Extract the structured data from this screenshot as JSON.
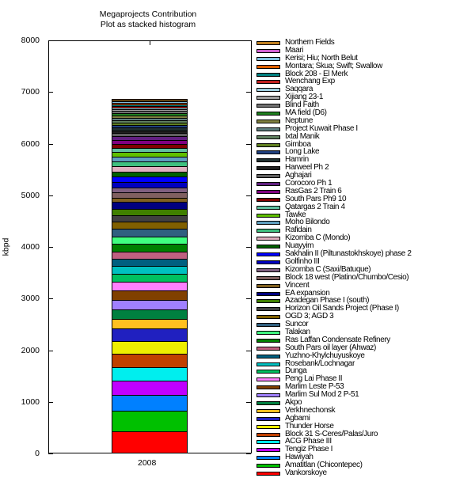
{
  "chart_data": {
    "type": "bar",
    "stacked": true,
    "title": "Megaprojects Contribution",
    "subtitle": "Plot as stacked histogram",
    "xlabel": "",
    "ylabel": "kbpd",
    "categories": [
      "2008"
    ],
    "ylim": [
      0,
      8000
    ],
    "yticks": [
      0,
      1000,
      2000,
      3000,
      4000,
      5000,
      6000,
      7000,
      8000
    ],
    "grid": false,
    "legend_position": "right",
    "series": [
      {
        "name": "Vankorskoye",
        "color": "#ff0000",
        "values": [
          410
        ]
      },
      {
        "name": "Amatitlan (Chicontepec)",
        "color": "#00c000",
        "values": [
          395
        ]
      },
      {
        "name": "Hawiyah",
        "color": "#0080ff",
        "values": [
          320
        ]
      },
      {
        "name": "Tengiz Phase I",
        "color": "#c000ff",
        "values": [
          275
        ]
      },
      {
        "name": "ACG Phase III",
        "color": "#00eeee",
        "values": [
          260
        ]
      },
      {
        "name": "Block 31 S-Ceres/Palas/Juro",
        "color": "#c04000",
        "values": [
          260
        ]
      },
      {
        "name": "Thunder Horse",
        "color": "#eeee00",
        "values": [
          245
        ]
      },
      {
        "name": "Agbami",
        "color": "#2020c0",
        "values": [
          235
        ]
      },
      {
        "name": "Verkhnechonsk",
        "color": "#ffc020",
        "values": [
          195
        ]
      },
      {
        "name": "Akpo",
        "color": "#008040",
        "values": [
          185
        ]
      },
      {
        "name": "Marlim Sul Mod 2 P-51",
        "color": "#a080ff",
        "values": [
          185
        ]
      },
      {
        "name": "Marlim Leste P-53",
        "color": "#804000",
        "values": [
          170
        ]
      },
      {
        "name": "Peng Lai Phase II",
        "color": "#ff80ff",
        "values": [
          170
        ]
      },
      {
        "name": "Dunga",
        "color": "#00c060",
        "values": [
          155
        ]
      },
      {
        "name": "Rosebank/Lochnagar",
        "color": "#00c0c0",
        "values": [
          155
        ]
      },
      {
        "name": "Yuzhno-Khylchuyuskoye",
        "color": "#006080",
        "values": [
          140
        ]
      },
      {
        "name": "South Pars oil layer (Ahwaz)",
        "color": "#c06080",
        "values": [
          145
        ]
      },
      {
        "name": "Ras Laffan Condensate Refinery",
        "color": "#008000",
        "values": [
          145
        ]
      },
      {
        "name": "Talakan",
        "color": "#40ff80",
        "values": [
          140
        ]
      },
      {
        "name": "Suncor",
        "color": "#306080",
        "values": [
          155
        ]
      },
      {
        "name": "OGD 3; AGD 3",
        "color": "#806000",
        "values": [
          128
        ]
      },
      {
        "name": "Horizon Oil Sands Project (Phase I)",
        "color": "#404040",
        "values": [
          135
        ]
      },
      {
        "name": "Azadegan Phase I (south)",
        "color": "#408000",
        "values": [
          125
        ]
      },
      {
        "name": "EA expansion",
        "color": "#000080",
        "values": [
          125
        ]
      },
      {
        "name": "Vincent",
        "color": "#806020",
        "values": [
          85
        ]
      },
      {
        "name": "Block 18 west (Platino/Chumbo/Cesio)",
        "color": "#806060",
        "values": [
          100
        ]
      },
      {
        "name": "Kizomba C (Saxi/Batuque)",
        "color": "#806080",
        "values": [
          92
        ]
      },
      {
        "name": "Golfinho III",
        "color": "#0000c0",
        "values": [
          107
        ]
      },
      {
        "name": "Sakhalin II (Piltunastokhskoye) phase 2",
        "color": "#0000ff",
        "values": [
          107
        ]
      },
      {
        "name": "Nuayyim",
        "color": "#006000",
        "values": [
          92
        ]
      },
      {
        "name": "Kizomba C (Mondo)",
        "color": "#e0b0c0",
        "values": [
          107
        ]
      },
      {
        "name": "Rafidain",
        "color": "#40c080",
        "values": [
          92
        ]
      },
      {
        "name": "Moho Bilondo",
        "color": "#60a0c0",
        "values": [
          92
        ]
      },
      {
        "name": "Tawke",
        "color": "#60c000",
        "values": [
          92
        ]
      },
      {
        "name": "Qatargas 2 Train 4",
        "color": "#60c0a0",
        "values": [
          77
        ]
      },
      {
        "name": "South Pars Ph9 10",
        "color": "#800000",
        "values": [
          77
        ]
      },
      {
        "name": "RasGas 2 Train 6",
        "color": "#800080",
        "values": [
          77
        ]
      },
      {
        "name": "Corocoro Ph 1",
        "color": "#602080",
        "values": [
          77
        ]
      },
      {
        "name": "Aghajari",
        "color": "#606060",
        "values": [
          60
        ]
      },
      {
        "name": "Harweel Ph 2",
        "color": "#202020",
        "values": [
          55
        ]
      },
      {
        "name": "Hamrin",
        "color": "#203030",
        "values": [
          50
        ]
      },
      {
        "name": "Long Lake",
        "color": "#204080",
        "values": [
          55
        ]
      },
      {
        "name": "Gimboa",
        "color": "#608020",
        "values": [
          50
        ]
      },
      {
        "name": "Ixtal Manik",
        "color": "#608060",
        "values": [
          45
        ]
      },
      {
        "name": "Project Kuwait Phase I",
        "color": "#608080",
        "values": [
          45
        ]
      },
      {
        "name": "Neptune",
        "color": "#808040",
        "values": [
          40
        ]
      },
      {
        "name": "MA field (D6)",
        "color": "#208020",
        "values": [
          55
        ]
      },
      {
        "name": "Blind Faith",
        "color": "#707070",
        "values": [
          35
        ]
      },
      {
        "name": "Xijiang 23-1",
        "color": "#a0a0a0",
        "values": [
          35
        ]
      },
      {
        "name": "Saqqara",
        "color": "#a0d0e0",
        "values": [
          30
        ]
      },
      {
        "name": "Wenchang Exp",
        "color": "#c02020",
        "values": [
          25
        ]
      },
      {
        "name": "Block 208 - El Merk",
        "color": "#008080",
        "values": [
          35
        ]
      },
      {
        "name": "Montara; Skua; Swift; Swallow",
        "color": "#e06000",
        "values": [
          30
        ]
      },
      {
        "name": "Kerisi; Hiu; North Belut",
        "color": "#80c0e0",
        "values": [
          30
        ]
      },
      {
        "name": "Maari",
        "color": "#d060d0",
        "values": [
          25
        ]
      },
      {
        "name": "Northern Fields",
        "color": "#c08020",
        "values": [
          25
        ]
      }
    ]
  },
  "axes": {
    "ytick_labels": [
      "0",
      "1000",
      "2000",
      "3000",
      "4000",
      "5000",
      "6000",
      "7000",
      "8000"
    ],
    "xtick_labels": [
      "2008"
    ]
  }
}
